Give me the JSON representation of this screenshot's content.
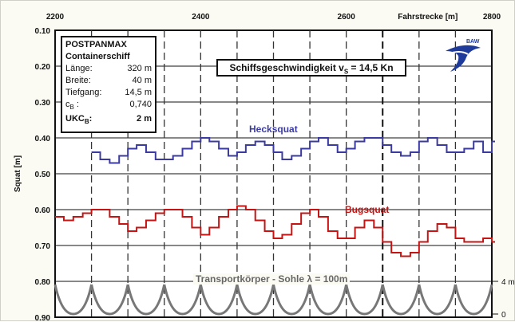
{
  "chart_data": {
    "type": "line",
    "xlabel": "Fahrstrecke [m]",
    "ylabel": "Squat [m]",
    "x_ticks": [
      2200,
      2400,
      2600,
      2800
    ],
    "xlim": [
      2200,
      2800
    ],
    "y_ticks": [
      "0.10",
      "0.20",
      "0.30",
      "0.40",
      "0.50",
      "0.60",
      "0.70",
      "0.80",
      "0.90"
    ],
    "ylim": [
      0.1,
      0.9
    ],
    "y_reversed": true,
    "right_axis_labels": [
      "4 m",
      "0"
    ],
    "series": [
      {
        "name": "Hecksquat",
        "color": "#3a3aa0",
        "x": [
          2250,
          2262,
          2275,
          2288,
          2300,
          2312,
          2325,
          2338,
          2350,
          2362,
          2375,
          2388,
          2400,
          2412,
          2425,
          2438,
          2450,
          2462,
          2475,
          2488,
          2500,
          2512,
          2525,
          2538,
          2550,
          2562,
          2575,
          2588,
          2600,
          2612,
          2625,
          2638,
          2650,
          2662,
          2675,
          2688,
          2700,
          2712,
          2725,
          2738,
          2750,
          2762,
          2775,
          2788,
          2800
        ],
        "y": [
          0.44,
          0.46,
          0.47,
          0.45,
          0.43,
          0.42,
          0.44,
          0.46,
          0.46,
          0.45,
          0.43,
          0.41,
          0.4,
          0.41,
          0.43,
          0.45,
          0.44,
          0.42,
          0.41,
          0.42,
          0.44,
          0.46,
          0.45,
          0.43,
          0.41,
          0.4,
          0.42,
          0.44,
          0.43,
          0.41,
          0.4,
          0.4,
          0.42,
          0.44,
          0.45,
          0.44,
          0.41,
          0.4,
          0.42,
          0.44,
          0.44,
          0.43,
          0.41,
          0.44,
          0.41
        ]
      },
      {
        "name": "Bugsquat",
        "color": "#c41414",
        "x": [
          2200,
          2212,
          2225,
          2238,
          2250,
          2262,
          2275,
          2288,
          2300,
          2312,
          2325,
          2338,
          2350,
          2362,
          2375,
          2388,
          2400,
          2412,
          2425,
          2438,
          2450,
          2462,
          2475,
          2488,
          2500,
          2512,
          2525,
          2538,
          2550,
          2562,
          2575,
          2588,
          2600,
          2612,
          2625,
          2638,
          2650,
          2662,
          2675,
          2688,
          2700,
          2712,
          2725,
          2738,
          2750,
          2762,
          2775,
          2788,
          2800
        ],
        "y": [
          0.62,
          0.63,
          0.62,
          0.61,
          0.6,
          0.6,
          0.62,
          0.64,
          0.66,
          0.65,
          0.63,
          0.61,
          0.6,
          0.6,
          0.62,
          0.65,
          0.67,
          0.65,
          0.62,
          0.6,
          0.59,
          0.6,
          0.63,
          0.66,
          0.68,
          0.67,
          0.64,
          0.61,
          0.6,
          0.62,
          0.66,
          0.68,
          0.68,
          0.65,
          0.63,
          0.65,
          0.69,
          0.72,
          0.73,
          0.72,
          0.69,
          0.66,
          0.64,
          0.65,
          0.68,
          0.69,
          0.69,
          0.68,
          0.69
        ]
      }
    ]
  },
  "info_box": {
    "title1": "POSTPANMAX",
    "title2": "Containerschiff",
    "laenge_label": "Länge:",
    "laenge_value": "320 m",
    "breite_label": "Breite:",
    "breite_value": "40 m",
    "tiefgang_label": "Tiefgang:",
    "tiefgang_value": "14,5 m",
    "cb_label": "c",
    "cb_sub": "B",
    "cb_colon": " :",
    "cb_value": "0,740",
    "ukc_label": "UKC",
    "ukc_sub": "B",
    "ukc_colon": ":",
    "ukc_value": "2 m"
  },
  "speed_box": {
    "prefix": "Schiffsgeschwindigkeit v",
    "sub": "S",
    "suffix": " = 14,5 Kn"
  },
  "labels": {
    "hecksquat": "Hecksquat",
    "bugsquat": "Bugsquat",
    "transport": "Transportkörper - Sohle  λ = 100m"
  },
  "logo_text": "BAW",
  "colors": {
    "heck": "#3a3aa0",
    "bug": "#c41414",
    "sohle": "#777777",
    "grid": "#111111",
    "logo": "#1e3a9a"
  }
}
